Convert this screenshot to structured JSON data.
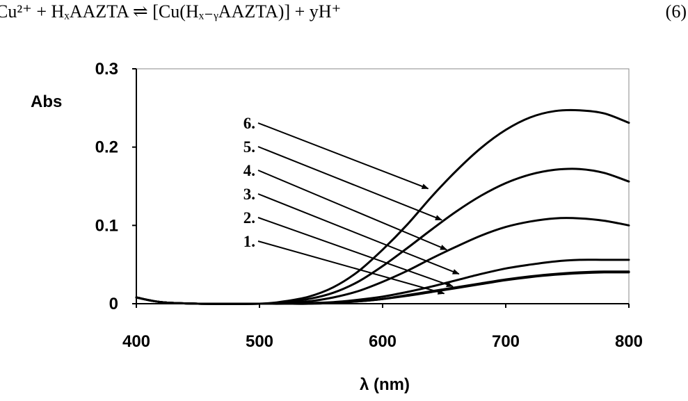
{
  "equation": {
    "text": "Cu²⁺ + HₓAAZTA ⇌ [Cu(Hₓ₋ᵧAAZTA)] + yH⁺",
    "number": "(6)"
  },
  "chart_data": {
    "type": "line",
    "xlabel": "λ (nm)",
    "ylabel": "Abs",
    "xlim": [
      400,
      800
    ],
    "ylim": [
      0,
      0.3
    ],
    "xticks": [
      "400",
      "500",
      "600",
      "700",
      "800"
    ],
    "yticks": [
      "0",
      "0.1",
      "0.2",
      "0.3"
    ],
    "grid": false,
    "legend": "none",
    "line_color": "#000000",
    "series": [
      {
        "name": "1.",
        "x": [
          400,
          420,
          450,
          500,
          520,
          540,
          560,
          580,
          600,
          620,
          640,
          660,
          680,
          700,
          720,
          740,
          760,
          780,
          800
        ],
        "y": [
          0.008,
          0.002,
          0.0,
          0.0,
          0.0,
          0.0,
          0.001,
          0.003,
          0.006,
          0.01,
          0.015,
          0.02,
          0.025,
          0.03,
          0.034,
          0.037,
          0.039,
          0.04,
          0.04
        ]
      },
      {
        "name": "2.",
        "x": [
          400,
          420,
          450,
          500,
          520,
          540,
          560,
          580,
          600,
          620,
          640,
          660,
          680,
          700,
          720,
          740,
          760,
          780,
          800
        ],
        "y": [
          0.008,
          0.002,
          0.0,
          0.0,
          0.0,
          0.0,
          0.001,
          0.003,
          0.006,
          0.011,
          0.016,
          0.021,
          0.026,
          0.031,
          0.035,
          0.038,
          0.04,
          0.041,
          0.041
        ]
      },
      {
        "name": "3.",
        "x": [
          400,
          420,
          450,
          500,
          520,
          540,
          560,
          580,
          600,
          620,
          640,
          660,
          680,
          700,
          720,
          740,
          760,
          780,
          800
        ],
        "y": [
          0.008,
          0.002,
          0.0,
          0.0,
          0.0,
          0.001,
          0.002,
          0.005,
          0.009,
          0.015,
          0.022,
          0.03,
          0.038,
          0.045,
          0.05,
          0.054,
          0.056,
          0.056,
          0.056
        ]
      },
      {
        "name": "4.",
        "x": [
          400,
          420,
          450,
          500,
          520,
          540,
          560,
          580,
          600,
          620,
          640,
          660,
          680,
          700,
          720,
          740,
          760,
          780,
          800
        ],
        "y": [
          0.008,
          0.002,
          0.0,
          0.0,
          0.001,
          0.003,
          0.008,
          0.016,
          0.028,
          0.042,
          0.058,
          0.073,
          0.087,
          0.098,
          0.105,
          0.109,
          0.109,
          0.106,
          0.1
        ]
      },
      {
        "name": "5.",
        "x": [
          400,
          420,
          450,
          500,
          520,
          540,
          560,
          580,
          600,
          620,
          640,
          660,
          680,
          700,
          720,
          740,
          760,
          780,
          800
        ],
        "y": [
          0.008,
          0.002,
          0.0,
          0.0,
          0.002,
          0.006,
          0.014,
          0.028,
          0.048,
          0.071,
          0.095,
          0.118,
          0.138,
          0.154,
          0.165,
          0.171,
          0.172,
          0.167,
          0.156
        ]
      },
      {
        "name": "6.",
        "x": [
          400,
          420,
          450,
          500,
          520,
          540,
          560,
          580,
          600,
          620,
          640,
          660,
          680,
          700,
          720,
          740,
          760,
          780,
          800
        ],
        "y": [
          0.008,
          0.002,
          0.0,
          0.0,
          0.003,
          0.009,
          0.021,
          0.041,
          0.069,
          0.101,
          0.137,
          0.17,
          0.199,
          0.222,
          0.238,
          0.246,
          0.247,
          0.243,
          0.231
        ]
      }
    ],
    "annotations": [
      {
        "label": "6.",
        "arrow_to": [
          637,
          0.147
        ]
      },
      {
        "label": "5.",
        "arrow_to": [
          648,
          0.107
        ]
      },
      {
        "label": "4.",
        "arrow_to": [
          652,
          0.069
        ]
      },
      {
        "label": "3.",
        "arrow_to": [
          662,
          0.038
        ]
      },
      {
        "label": "2.",
        "arrow_to": [
          657,
          0.022
        ]
      },
      {
        "label": "1.",
        "arrow_to": [
          650,
          0.013
        ]
      }
    ]
  }
}
